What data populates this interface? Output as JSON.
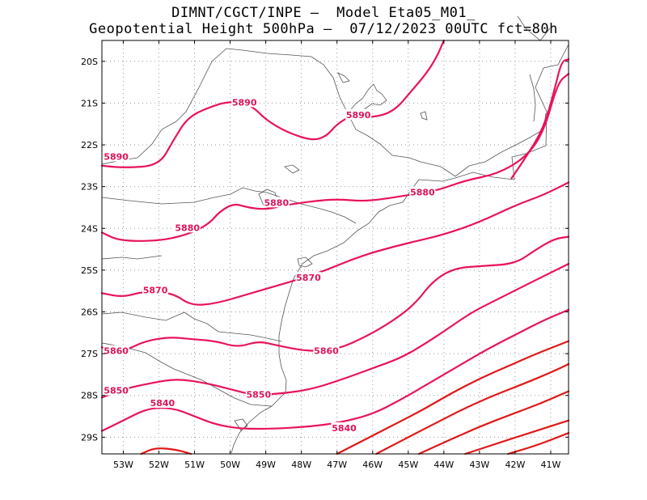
{
  "title": {
    "line1": "DIMNT/CGCT/INPE –  Model Eta05_M01_",
    "line2": "Geopotential Height 500hPa –  07/12/2023 00UTC fct=80h"
  },
  "map": {
    "lon_range": [
      -53.6,
      -40.5
    ],
    "lat_range": [
      -29.4,
      -19.5
    ],
    "x_ticks": [
      {
        "lon": -53,
        "label": "53W"
      },
      {
        "lon": -52,
        "label": "52W"
      },
      {
        "lon": -51,
        "label": "51W"
      },
      {
        "lon": -50,
        "label": "50W"
      },
      {
        "lon": -49,
        "label": "49W"
      },
      {
        "lon": -48,
        "label": "48W"
      },
      {
        "lon": -47,
        "label": "47W"
      },
      {
        "lon": -46,
        "label": "46W"
      },
      {
        "lon": -45,
        "label": "45W"
      },
      {
        "lon": -44,
        "label": "44W"
      },
      {
        "lon": -43,
        "label": "43W"
      },
      {
        "lon": -42,
        "label": "42W"
      },
      {
        "lon": -41,
        "label": "41W"
      }
    ],
    "y_ticks": [
      {
        "lat": -20,
        "label": "20S"
      },
      {
        "lat": -21,
        "label": "21S"
      },
      {
        "lat": -22,
        "label": "22S"
      },
      {
        "lat": -23,
        "label": "23S"
      },
      {
        "lat": -24,
        "label": "24S"
      },
      {
        "lat": -25,
        "label": "25S"
      },
      {
        "lat": -26,
        "label": "26S"
      },
      {
        "lat": -27,
        "label": "27S"
      },
      {
        "lat": -28,
        "label": "28S"
      },
      {
        "lat": -29,
        "label": "29S"
      }
    ],
    "colors": {
      "high": "#e8135c",
      "low": "#e01818",
      "grid": "#999999",
      "border": "#555555"
    }
  },
  "chart_data": {
    "type": "contour",
    "variable": "Geopotential Height 500hPa",
    "units": "m",
    "contours": [
      {
        "level": 5890,
        "label": "5890",
        "labels_at": [
          [
            -53.2,
            -22.3
          ],
          [
            -49.6,
            -21.0
          ],
          [
            -46.4,
            -21.3
          ]
        ],
        "points": [
          [
            -53.6,
            -22.5
          ],
          [
            -53.0,
            -22.55
          ],
          [
            -52.0,
            -22.5
          ],
          [
            -51.6,
            -21.9
          ],
          [
            -51.2,
            -21.35
          ],
          [
            -50.6,
            -21.1
          ],
          [
            -50.0,
            -20.95
          ],
          [
            -49.4,
            -21.05
          ],
          [
            -49.0,
            -21.4
          ],
          [
            -48.4,
            -21.7
          ],
          [
            -47.7,
            -21.9
          ],
          [
            -47.3,
            -21.8
          ],
          [
            -47.0,
            -21.5
          ],
          [
            -46.6,
            -21.3
          ],
          [
            -46.0,
            -21.35
          ],
          [
            -45.4,
            -21.2
          ],
          [
            -44.9,
            -20.7
          ],
          [
            -44.5,
            -20.3
          ],
          [
            -44.2,
            -19.9
          ],
          [
            -44.0,
            -19.5
          ]
        ]
      },
      {
        "level": 5890,
        "label": "",
        "labels_at": [],
        "points": [
          [
            -42.1,
            -22.8
          ],
          [
            -41.7,
            -22.3
          ],
          [
            -41.2,
            -21.6
          ],
          [
            -40.9,
            -20.7
          ],
          [
            -40.7,
            -20.0
          ],
          [
            -40.5,
            -19.95
          ]
        ]
      },
      {
        "level": 5880,
        "label": "5880",
        "labels_at": [
          [
            -51.2,
            -24.0
          ],
          [
            -48.7,
            -23.4
          ],
          [
            -44.6,
            -23.15
          ]
        ],
        "points": [
          [
            -53.6,
            -24.1
          ],
          [
            -53.1,
            -24.3
          ],
          [
            -52.0,
            -24.3
          ],
          [
            -51.2,
            -24.15
          ],
          [
            -50.6,
            -23.9
          ],
          [
            -50.3,
            -23.6
          ],
          [
            -49.9,
            -23.4
          ],
          [
            -49.5,
            -23.5
          ],
          [
            -49.0,
            -23.55
          ],
          [
            -48.5,
            -23.45
          ],
          [
            -47.7,
            -23.35
          ],
          [
            -47.0,
            -23.3
          ],
          [
            -46.3,
            -23.35
          ],
          [
            -45.7,
            -23.3
          ],
          [
            -45.0,
            -23.2
          ],
          [
            -44.2,
            -23.1
          ],
          [
            -43.4,
            -22.85
          ],
          [
            -42.5,
            -22.7
          ],
          [
            -41.7,
            -22.3
          ],
          [
            -41.2,
            -21.7
          ],
          [
            -40.8,
            -20.5
          ],
          [
            -40.5,
            -20.3
          ]
        ]
      },
      {
        "level": 5870,
        "label": "5870",
        "labels_at": [
          [
            -52.1,
            -25.5
          ],
          [
            -47.8,
            -25.2
          ]
        ],
        "points": [
          [
            -53.6,
            -25.55
          ],
          [
            -53.0,
            -25.65
          ],
          [
            -52.4,
            -25.5
          ],
          [
            -51.6,
            -25.55
          ],
          [
            -51.1,
            -25.85
          ],
          [
            -50.4,
            -25.8
          ],
          [
            -49.6,
            -25.6
          ],
          [
            -48.8,
            -25.4
          ],
          [
            -48.0,
            -25.2
          ],
          [
            -47.3,
            -25.0
          ],
          [
            -46.6,
            -24.75
          ],
          [
            -45.9,
            -24.55
          ],
          [
            -45.0,
            -24.35
          ],
          [
            -44.0,
            -24.15
          ],
          [
            -43.0,
            -23.85
          ],
          [
            -42.0,
            -23.45
          ],
          [
            -41.2,
            -23.2
          ],
          [
            -40.5,
            -22.9
          ]
        ]
      },
      {
        "level": 5860,
        "label": "5860",
        "labels_at": [
          [
            -53.2,
            -26.95
          ],
          [
            -47.3,
            -26.95
          ]
        ],
        "points": [
          [
            -53.6,
            -26.85
          ],
          [
            -53.0,
            -26.95
          ],
          [
            -52.4,
            -26.7
          ],
          [
            -51.7,
            -26.6
          ],
          [
            -51.1,
            -26.65
          ],
          [
            -50.4,
            -26.7
          ],
          [
            -49.8,
            -26.85
          ],
          [
            -49.2,
            -26.7
          ],
          [
            -48.7,
            -26.8
          ],
          [
            -47.8,
            -26.95
          ],
          [
            -47.0,
            -26.9
          ],
          [
            -46.2,
            -26.6
          ],
          [
            -45.4,
            -26.2
          ],
          [
            -44.8,
            -25.8
          ],
          [
            -44.3,
            -25.25
          ],
          [
            -43.7,
            -24.95
          ],
          [
            -42.9,
            -24.9
          ],
          [
            -42.0,
            -24.85
          ],
          [
            -41.4,
            -24.5
          ],
          [
            -40.9,
            -24.25
          ],
          [
            -40.5,
            -24.2
          ]
        ]
      },
      {
        "level": 5850,
        "label": "5850",
        "labels_at": [
          [
            -53.2,
            -27.9
          ],
          [
            -49.2,
            -28.0
          ]
        ],
        "points": [
          [
            -53.6,
            -28.05
          ],
          [
            -53.0,
            -27.85
          ],
          [
            -52.2,
            -27.7
          ],
          [
            -51.5,
            -27.6
          ],
          [
            -50.7,
            -27.7
          ],
          [
            -50.0,
            -27.85
          ],
          [
            -49.3,
            -28.0
          ],
          [
            -48.5,
            -27.95
          ],
          [
            -47.7,
            -27.85
          ],
          [
            -46.8,
            -27.6
          ],
          [
            -46.0,
            -27.35
          ],
          [
            -45.2,
            -27.1
          ],
          [
            -44.5,
            -26.75
          ],
          [
            -43.8,
            -26.35
          ],
          [
            -43.2,
            -26.0
          ],
          [
            -42.5,
            -25.7
          ],
          [
            -41.8,
            -25.4
          ],
          [
            -41.1,
            -25.1
          ],
          [
            -40.5,
            -24.85
          ]
        ]
      },
      {
        "level": 5840,
        "label": "5840",
        "labels_at": [
          [
            -51.9,
            -28.2
          ],
          [
            -46.8,
            -28.8
          ]
        ],
        "points": [
          [
            -53.6,
            -28.85
          ],
          [
            -53.0,
            -28.6
          ],
          [
            -52.3,
            -28.3
          ],
          [
            -51.6,
            -28.3
          ],
          [
            -51.0,
            -28.5
          ],
          [
            -50.4,
            -28.7
          ],
          [
            -49.7,
            -28.8
          ],
          [
            -48.8,
            -28.8
          ],
          [
            -47.8,
            -28.75
          ],
          [
            -46.9,
            -28.65
          ],
          [
            -46.0,
            -28.45
          ],
          [
            -45.2,
            -28.1
          ],
          [
            -44.4,
            -27.7
          ],
          [
            -43.6,
            -27.3
          ],
          [
            -42.8,
            -26.9
          ],
          [
            -42.0,
            -26.55
          ],
          [
            -41.2,
            -26.2
          ],
          [
            -40.5,
            -25.95
          ]
        ]
      },
      {
        "level": 5830,
        "label": "",
        "labels_at": [],
        "points": [
          [
            -47.0,
            -29.4
          ],
          [
            -46.2,
            -29.05
          ],
          [
            -45.4,
            -28.7
          ],
          [
            -44.6,
            -28.35
          ],
          [
            -43.8,
            -27.95
          ],
          [
            -43.0,
            -27.6
          ],
          [
            -42.2,
            -27.3
          ],
          [
            -41.4,
            -27.0
          ],
          [
            -40.5,
            -26.7
          ]
        ]
      },
      {
        "level": 5830,
        "label": "",
        "labels_at": [],
        "points": [
          [
            -52.5,
            -29.4
          ],
          [
            -52.1,
            -29.25
          ],
          [
            -51.5,
            -29.3
          ],
          [
            -51.1,
            -29.4
          ]
        ]
      },
      {
        "level": 5820,
        "label": "",
        "labels_at": [],
        "points": [
          [
            -45.9,
            -29.4
          ],
          [
            -45.0,
            -29.0
          ],
          [
            -44.2,
            -28.65
          ],
          [
            -43.4,
            -28.3
          ],
          [
            -42.6,
            -28.0
          ],
          [
            -41.7,
            -27.7
          ],
          [
            -41.0,
            -27.45
          ],
          [
            -40.5,
            -27.25
          ]
        ]
      },
      {
        "level": 5810,
        "label": "",
        "labels_at": [],
        "points": [
          [
            -44.7,
            -29.4
          ],
          [
            -43.8,
            -29.05
          ],
          [
            -43.0,
            -28.75
          ],
          [
            -42.1,
            -28.45
          ],
          [
            -41.3,
            -28.2
          ],
          [
            -40.5,
            -27.9
          ]
        ]
      },
      {
        "level": 5800,
        "label": "",
        "labels_at": [],
        "points": [
          [
            -43.4,
            -29.4
          ],
          [
            -42.5,
            -29.15
          ],
          [
            -41.6,
            -28.9
          ],
          [
            -40.5,
            -28.6
          ]
        ]
      },
      {
        "level": 5790,
        "label": "",
        "labels_at": [],
        "points": [
          [
            -42.2,
            -29.4
          ],
          [
            -41.4,
            -29.2
          ],
          [
            -40.5,
            -28.9
          ]
        ]
      }
    ]
  }
}
